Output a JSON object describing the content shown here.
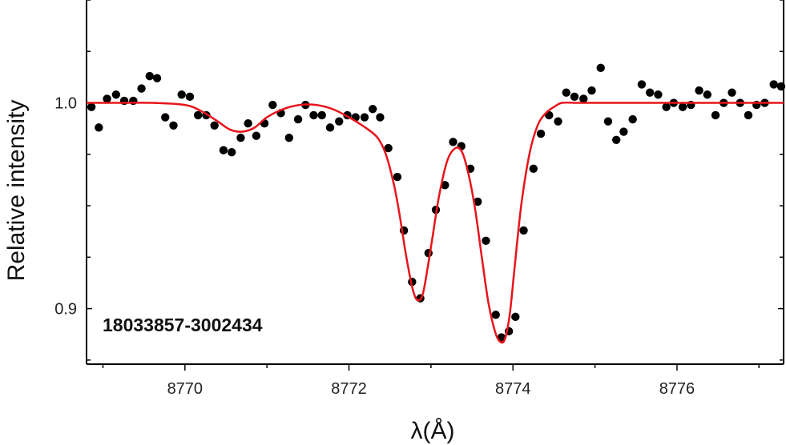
{
  "chart_data": {
    "type": "scatter",
    "xlabel": "λ(Å)",
    "ylabel": "Relative intensity",
    "annotation": "18033857-3002434",
    "xlim": [
      8768.8,
      8777.3
    ],
    "ylim": [
      0.873,
      1.05
    ],
    "x_ticks": [
      8770,
      8772,
      8774,
      8776
    ],
    "y_ticks": [
      0.9,
      1.0
    ],
    "y_tick_labels": [
      "0.9",
      "1.0"
    ],
    "colors": {
      "points": "#000000",
      "fit": "#e8141c",
      "axis": "#000000"
    },
    "series": [
      {
        "kind": "points",
        "x": [
          8768.86,
          8768.95,
          8769.05,
          8769.16,
          8769.26,
          8769.37,
          8769.47,
          8769.57,
          8769.66,
          8769.76,
          8769.86,
          8769.96,
          8770.06,
          8770.16,
          8770.26,
          8770.36,
          8770.47,
          8770.57,
          8770.68,
          8770.77,
          8770.87,
          8770.97,
          8771.07,
          8771.17,
          8771.27,
          8771.38,
          8771.47,
          8771.57,
          8771.67,
          8771.77,
          8771.88,
          8771.98,
          8772.08,
          8772.19,
          8772.29,
          8772.38,
          8772.48,
          8772.59,
          8772.67,
          8772.77,
          8772.87,
          8772.97,
          8773.06,
          8773.17,
          8773.27,
          8773.37,
          8773.48,
          8773.57,
          8773.67,
          8773.79,
          8773.86,
          8773.95,
          8774.03,
          8774.13,
          8774.25,
          8774.34,
          8774.44,
          8774.55,
          8774.65,
          8774.75,
          8774.86,
          8774.96,
          8775.07,
          8775.16,
          8775.26,
          8775.35,
          8775.46,
          8775.57,
          8775.67,
          8775.77,
          8775.87,
          8775.96,
          8776.07,
          8776.17,
          8776.27,
          8776.37,
          8776.47,
          8776.57,
          8776.67,
          8776.77,
          8776.87,
          8776.97,
          8777.07,
          8777.18,
          8777.27
        ],
        "y": [
          0.998,
          0.988,
          1.002,
          1.004,
          1.001,
          1.001,
          1.007,
          1.013,
          1.012,
          0.993,
          0.989,
          1.004,
          1.003,
          0.994,
          0.994,
          0.989,
          0.977,
          0.976,
          0.983,
          0.99,
          0.984,
          0.99,
          0.999,
          0.995,
          0.983,
          0.992,
          0.999,
          0.994,
          0.994,
          0.988,
          0.991,
          0.994,
          0.993,
          0.993,
          0.997,
          0.993,
          0.978,
          0.964,
          0.938,
          0.913,
          0.905,
          0.927,
          0.948,
          0.96,
          0.981,
          0.979,
          0.968,
          0.952,
          0.933,
          0.897,
          0.886,
          0.889,
          0.896,
          0.938,
          0.968,
          0.985,
          0.994,
          0.991,
          1.005,
          1.003,
          1.002,
          1.006,
          1.017,
          0.991,
          0.982,
          0.986,
          0.992,
          1.009,
          1.005,
          1.004,
          0.998,
          1.0,
          0.998,
          0.999,
          1.006,
          1.004,
          0.994,
          1.0,
          1.005,
          1.0,
          0.994,
          0.999,
          1.0,
          1.009,
          1.008
        ]
      },
      {
        "kind": "fit",
        "x": [
          8768.8,
          8769.2,
          8769.6,
          8770.0,
          8770.2,
          8770.4,
          8770.55,
          8770.7,
          8770.85,
          8771.0,
          8771.2,
          8771.4,
          8771.6,
          8771.8,
          8772.0,
          8772.2,
          8772.35,
          8772.45,
          8772.55,
          8772.62,
          8772.7,
          8772.78,
          8772.84,
          8772.9,
          8772.96,
          8773.02,
          8773.1,
          8773.2,
          8773.3,
          8773.38,
          8773.46,
          8773.54,
          8773.62,
          8773.7,
          8773.78,
          8773.84,
          8773.9,
          8773.96,
          8774.02,
          8774.1,
          8774.2,
          8774.3,
          8774.4,
          8774.5,
          8774.6,
          8774.8,
          8775.0,
          8775.4,
          8776.0,
          8776.6,
          8777.3
        ],
        "y": [
          1.0,
          1.0,
          1.0,
          0.999,
          0.996,
          0.991,
          0.987,
          0.986,
          0.988,
          0.993,
          0.997,
          0.999,
          0.999,
          0.997,
          0.993,
          0.988,
          0.983,
          0.975,
          0.96,
          0.945,
          0.925,
          0.909,
          0.904,
          0.907,
          0.92,
          0.935,
          0.955,
          0.972,
          0.978,
          0.976,
          0.965,
          0.948,
          0.925,
          0.903,
          0.889,
          0.884,
          0.885,
          0.897,
          0.92,
          0.95,
          0.975,
          0.989,
          0.995,
          0.998,
          1.0,
          1.0,
          1.0,
          1.0,
          1.0,
          1.0,
          1.0
        ]
      }
    ]
  }
}
